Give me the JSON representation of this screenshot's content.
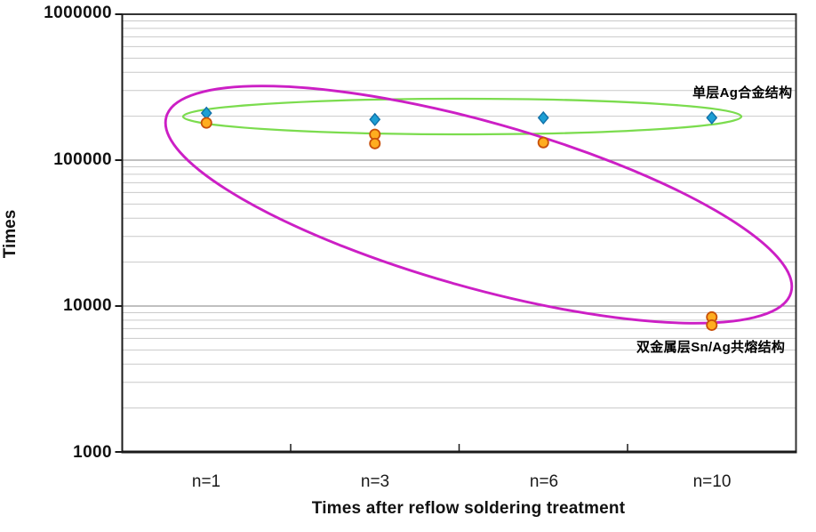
{
  "chart_data": {
    "type": "scatter",
    "title": "",
    "xlabel": "Times after reflow soldering treatment",
    "ylabel": "Times",
    "y_scale": "log",
    "ylim": [
      1000,
      1000000
    ],
    "y_tick_labels": [
      "1000000",
      "100000",
      "10000",
      "1000"
    ],
    "categories": [
      "n=1",
      "n=3",
      "n=6",
      "n=10"
    ],
    "grid": "horizontal log minor + major gridlines, on",
    "legend": "none (inline text annotations inside plot)",
    "series": [
      {
        "name": "单层Ag合金结构",
        "marker": "diamond",
        "fill": "#1D9FD4",
        "border": "#1070A8",
        "points": [
          {
            "category": "n=1",
            "value": 210000
          },
          {
            "category": "n=3",
            "value": 190000
          },
          {
            "category": "n=6",
            "value": 195000
          },
          {
            "category": "n=10",
            "value": 195000
          }
        ]
      },
      {
        "name": "双金属层Sn/Ag共熔结构",
        "marker": "circle",
        "fill": "#FFAD1F",
        "border": "#C8500A",
        "points": [
          {
            "category": "n=1",
            "value": 180000
          },
          {
            "category": "n=3",
            "value": 150000
          },
          {
            "category": "n=3",
            "value": 130000
          },
          {
            "category": "n=6",
            "value": 132000
          },
          {
            "category": "n=10",
            "value": 8400
          },
          {
            "category": "n=10",
            "value": 7400
          }
        ]
      }
    ],
    "annotations": [
      {
        "text": "单层Ag合金结构",
        "refers_to": "blue diamond series",
        "color": "#000000"
      },
      {
        "text": "双金属层Sn/Ag共熔结构",
        "refers_to": "orange circle series",
        "color": "#000000"
      }
    ],
    "highlight_ellipses": [
      {
        "series": "单层Ag合金结构",
        "color": "#7BDC4E"
      },
      {
        "series": "双金属层Sn/Ag共熔结构",
        "color": "#CC1FC5"
      }
    ],
    "frame_color": "#333333",
    "gridline_minor_color": "#C9C9C9",
    "gridline_major_color": "#9B9B9B"
  }
}
